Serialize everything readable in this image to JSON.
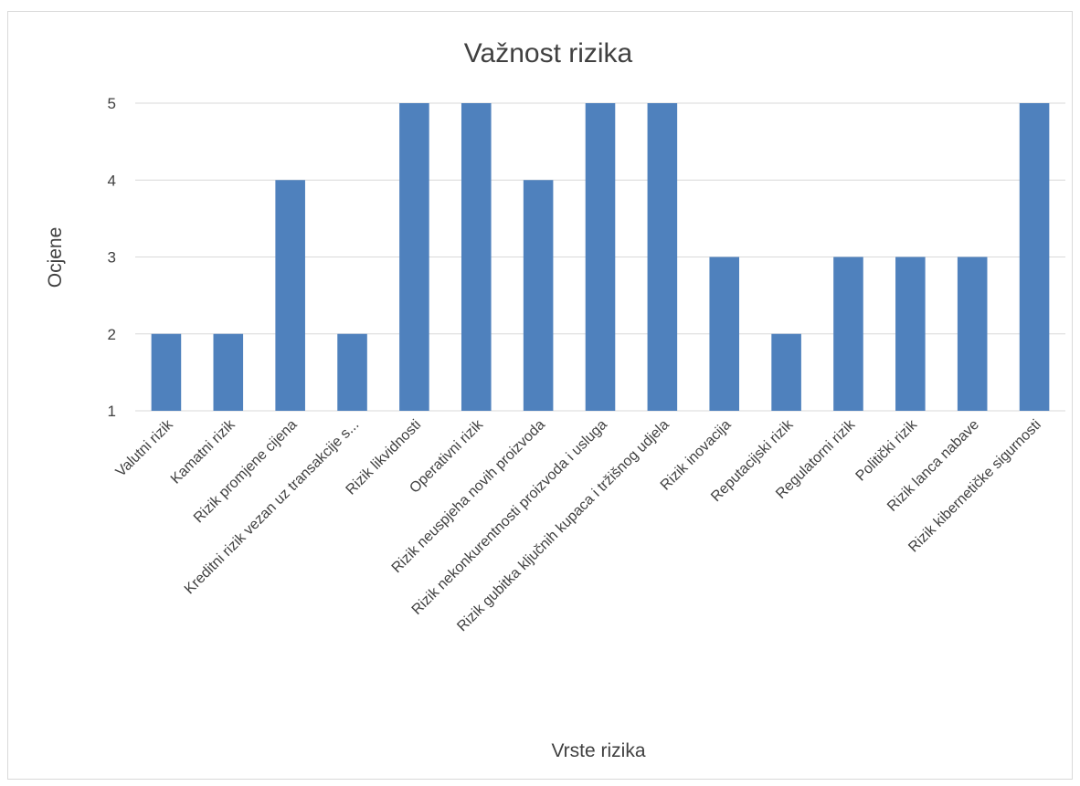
{
  "chart_data": {
    "type": "bar",
    "title": "Važnost rizika",
    "xlabel": "Vrste rizika",
    "ylabel": "Ocjene",
    "ylim": [
      1,
      5
    ],
    "yticks": [
      "1",
      "2",
      "3",
      "4",
      "5"
    ],
    "grid": true,
    "legend": "none",
    "bar_color": "#4f81bd",
    "categories": [
      "Valutni rizik",
      "Kamatni rizik",
      "Rizik promjene cijena",
      "Kreditni rizik vezan uz transakcije s...",
      "Rizik likvidnosti",
      "Operativni rizik",
      "Rizik neuspjeha novih proizvoda",
      "Rizik nekonkurentnosti proizvoda i usluga",
      "Rizik gubitka ključnih kupaca i tržišnog udjela",
      "Rizik inovacija",
      "Reputacijski rizik",
      "Regulatorni rizik",
      "Politički rizik",
      "Rizik lanca nabave",
      "Rizik kibernetičke sigurnosti"
    ],
    "values": [
      2,
      2,
      4,
      2,
      5,
      5,
      4,
      5,
      5,
      3,
      2,
      3,
      3,
      3,
      5
    ]
  }
}
